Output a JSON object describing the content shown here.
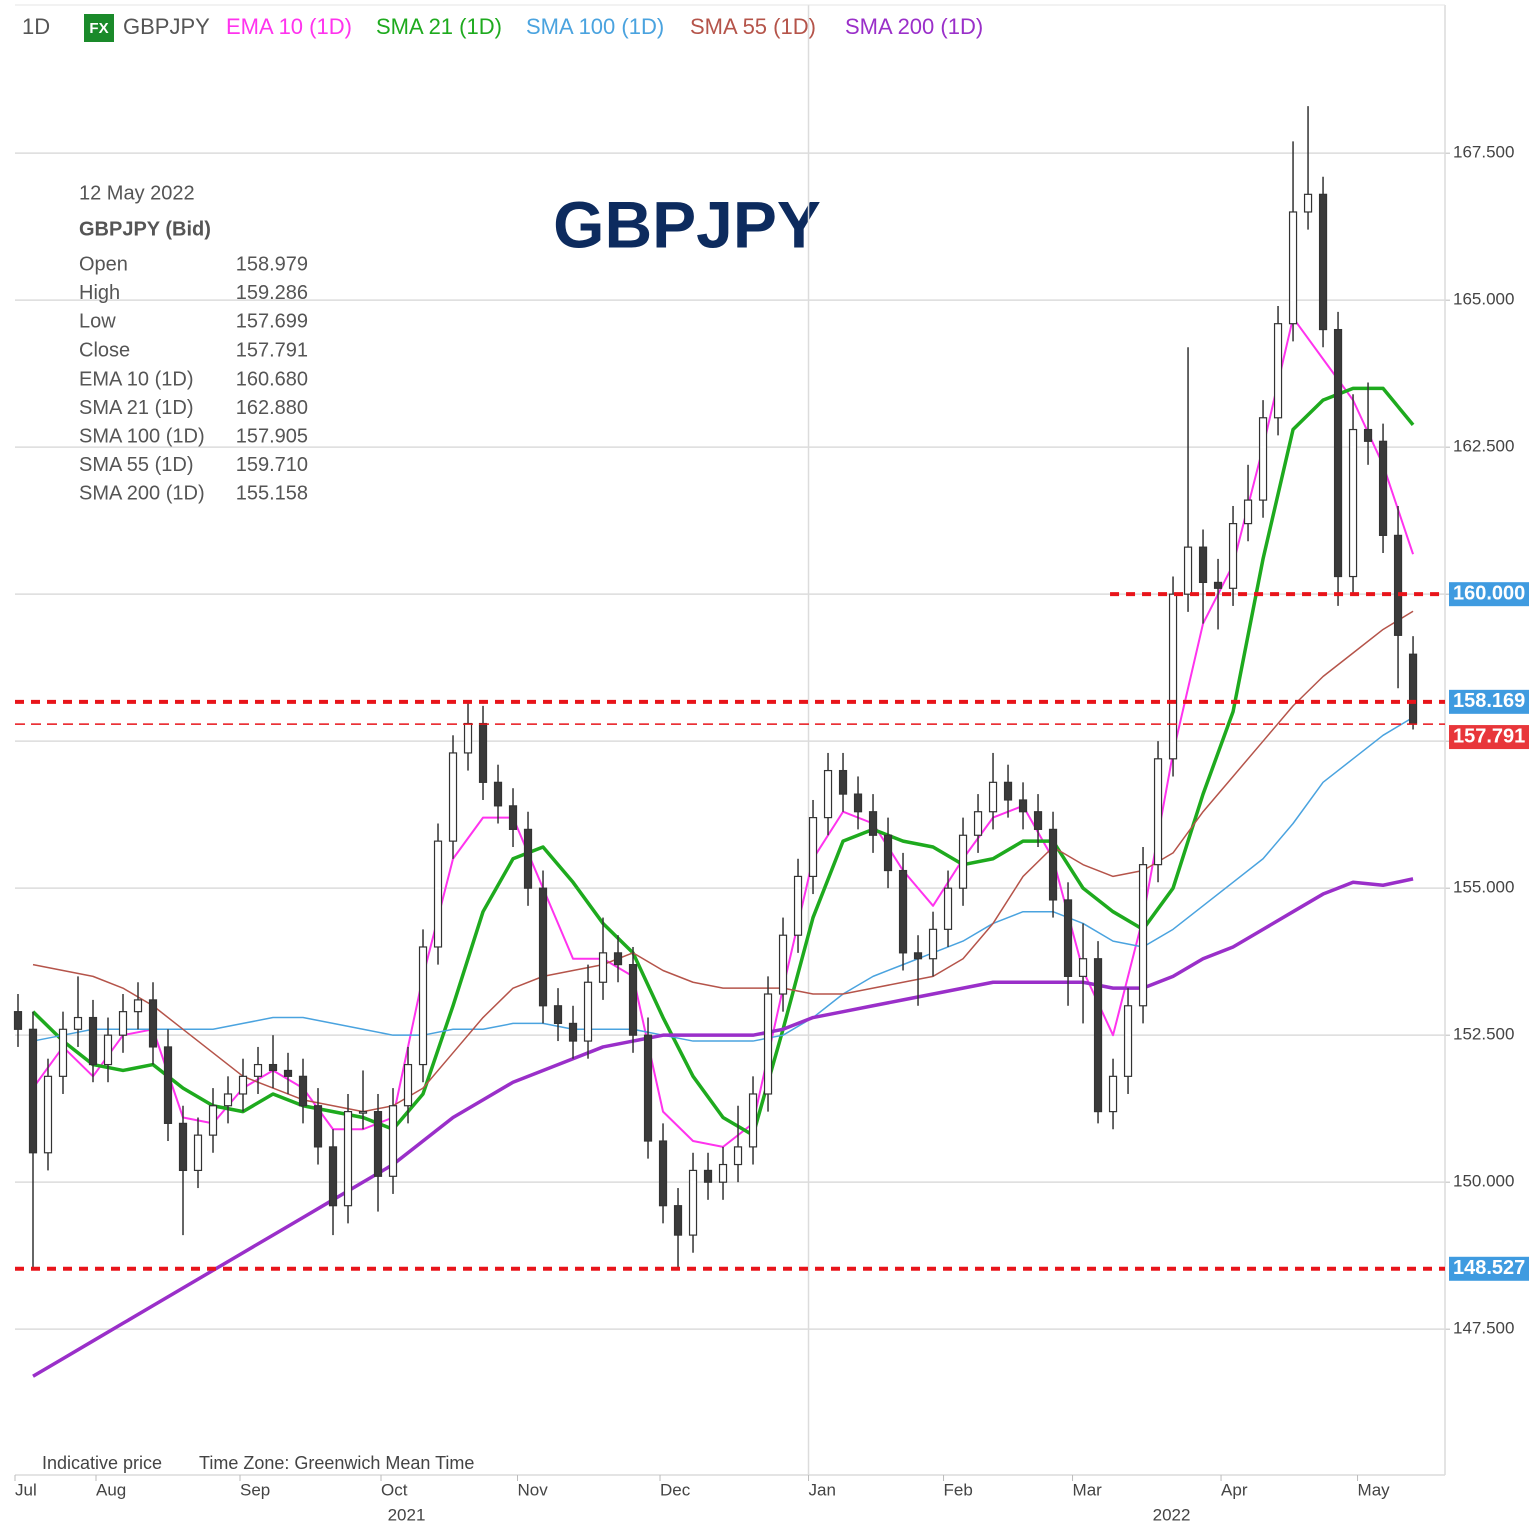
{
  "chart_data": {
    "type": "candlestick",
    "timeframe": "1D",
    "badge": "FX",
    "symbol": "GBPJPY",
    "title": "GBPJPY",
    "open": [
      152.9,
      152.6,
      150.5,
      151.8,
      152.6,
      152.8,
      152,
      152.5,
      152.9,
      153.1,
      152.3,
      151,
      150.2,
      150.8,
      151.3,
      151.5,
      151.8,
      152,
      151.9,
      151.8,
      151.3,
      150.6,
      149.6,
      151.2,
      151.2,
      150.1,
      151.3,
      152,
      154,
      155.8,
      157.3,
      157.8,
      156.8,
      156.4,
      156,
      155,
      153,
      152.7,
      152.4,
      153.4,
      153.9,
      153.7,
      152.5,
      150.7,
      149.6,
      149.1,
      150.2,
      150,
      150.3,
      150.6,
      151.5,
      153.2,
      154.2,
      155.2,
      156.2,
      157,
      156.6,
      156.3,
      155.9,
      155.3,
      153.9,
      153.8,
      154.3,
      155,
      155.9,
      156.3,
      156.8,
      156.5,
      156.3,
      156,
      154.8,
      153.5,
      153.8,
      151.2,
      151.8,
      153,
      155.4,
      157.2,
      160,
      160.8,
      160.2,
      160.1,
      161.2,
      161.6,
      163,
      164.6,
      166.5,
      166.8,
      164.5,
      160.3,
      162.8,
      162.6,
      161,
      158.979
    ],
    "high": [
      153.2,
      152.9,
      152.1,
      152.9,
      153.5,
      153.1,
      152.8,
      153.2,
      153.4,
      153.4,
      152.6,
      151.3,
      151.1,
      151.6,
      151.8,
      152.1,
      152.3,
      152.5,
      152.2,
      152.1,
      151.6,
      150.9,
      151.5,
      151.9,
      151.5,
      151.6,
      152.3,
      154.3,
      156.1,
      157.6,
      158.2,
      158.1,
      157.1,
      156.7,
      156.3,
      155.3,
      153.3,
      153,
      153.7,
      154.5,
      154.2,
      154,
      152.8,
      151,
      149.9,
      150.5,
      150.5,
      150.6,
      151.3,
      151.8,
      153.5,
      154.5,
      155.5,
      156.5,
      157.3,
      157.3,
      156.9,
      156.6,
      156.2,
      155.6,
      154.2,
      154.6,
      155.3,
      156.2,
      156.6,
      157.3,
      157.1,
      156.8,
      156.6,
      156.3,
      155.1,
      154.4,
      154.1,
      152.1,
      153.3,
      155.7,
      157.5,
      160.3,
      164.2,
      161.1,
      160.6,
      161.5,
      162.2,
      163.3,
      164.9,
      167.7,
      168.3,
      167.1,
      164.8,
      163.4,
      163.6,
      162.9,
      161.5,
      159.286
    ],
    "low": [
      152.3,
      148.5,
      150.2,
      151.5,
      152.3,
      151.7,
      151.7,
      152.2,
      152.6,
      152,
      150.7,
      149.1,
      149.9,
      150.5,
      151,
      151.2,
      151.5,
      151.6,
      151.5,
      151,
      150.3,
      149.1,
      149.3,
      150.9,
      149.5,
      149.8,
      151,
      151.7,
      153.7,
      155.5,
      157,
      156.5,
      156.1,
      155.7,
      154.7,
      152.7,
      152.4,
      152.1,
      152.1,
      153.1,
      153.4,
      152.2,
      150.4,
      149.3,
      148.5,
      148.8,
      149.7,
      149.7,
      150,
      150.3,
      151.2,
      152.9,
      153.9,
      154.9,
      155.9,
      156.3,
      156,
      155.6,
      155,
      153.6,
      153,
      153.5,
      154,
      154.7,
      155.6,
      156,
      156.2,
      156,
      155.7,
      154.5,
      153,
      152.7,
      151,
      150.9,
      151.5,
      152.7,
      155.1,
      156.9,
      159.7,
      159.5,
      159.4,
      159.8,
      160.9,
      161.3,
      162.7,
      164.3,
      166.2,
      164.2,
      159.8,
      160,
      162.2,
      160.7,
      158.4,
      157.699
    ],
    "close": [
      152.6,
      150.5,
      151.8,
      152.6,
      152.8,
      152,
      152.5,
      152.9,
      153.1,
      152.3,
      151,
      150.2,
      150.8,
      151.3,
      151.5,
      151.8,
      152,
      151.9,
      151.8,
      151.3,
      150.6,
      149.6,
      151.2,
      151.2,
      150.1,
      151.3,
      152,
      154,
      155.8,
      157.3,
      157.8,
      156.8,
      156.4,
      156,
      155,
      153,
      152.7,
      152.4,
      153.4,
      153.9,
      153.7,
      152.5,
      150.7,
      149.6,
      149.1,
      150.2,
      150,
      150.3,
      150.6,
      151.5,
      153.2,
      154.2,
      155.2,
      156.2,
      157,
      156.6,
      156.3,
      155.9,
      155.3,
      153.9,
      153.8,
      154.3,
      155,
      155.9,
      156.3,
      156.8,
      156.5,
      156.3,
      156,
      154.8,
      153.5,
      153.8,
      151.2,
      151.8,
      153,
      155.4,
      157.2,
      160,
      160.8,
      160.2,
      160.1,
      161.2,
      161.6,
      163,
      164.6,
      166.5,
      166.8,
      164.5,
      160.3,
      162.8,
      162.6,
      161,
      159.3,
      157.791
    ],
    "ma_x": [
      1,
      3,
      5,
      7,
      9,
      11,
      13,
      15,
      17,
      19,
      21,
      23,
      25,
      27,
      29,
      31,
      33,
      35,
      37,
      39,
      41,
      43,
      45,
      47,
      49,
      51,
      53,
      55,
      57,
      59,
      61,
      63,
      65,
      67,
      69,
      71,
      73,
      75,
      77,
      79,
      81,
      83,
      85,
      87,
      89,
      91,
      93
    ],
    "series": [
      {
        "name": "EMA 10 (1D)",
        "color": "#ff33ee",
        "width": 2,
        "values": [
          151.6,
          152.3,
          151.8,
          152.5,
          152.6,
          151.1,
          151,
          151.6,
          151.9,
          151.6,
          150.9,
          150.9,
          151.1,
          153.5,
          155.5,
          156.2,
          156.2,
          155,
          153.8,
          153.8,
          153.5,
          151.2,
          150.7,
          150.6,
          151,
          153.3,
          155.5,
          156.3,
          156.1,
          155.3,
          154.7,
          155.5,
          156.2,
          156.4,
          155.5,
          153.6,
          152.5,
          154.5,
          157.3,
          159.5,
          160.5,
          162.5,
          164.7,
          164,
          163.3,
          162.2,
          160.68
        ]
      },
      {
        "name": "SMA 21 (1D)",
        "color": "#1eaa1e",
        "width": 3.5,
        "values": [
          152.9,
          152.4,
          152,
          151.9,
          152,
          151.6,
          151.3,
          151.2,
          151.5,
          151.3,
          151.2,
          151.1,
          150.9,
          151.5,
          153,
          154.6,
          155.5,
          155.7,
          155.1,
          154.4,
          153.9,
          152.8,
          151.8,
          151.1,
          150.8,
          152.6,
          154.5,
          155.8,
          156,
          155.8,
          155.7,
          155.4,
          155.5,
          155.8,
          155.8,
          155,
          154.6,
          154.3,
          155,
          156.6,
          158,
          160.6,
          162.8,
          163.3,
          163.5,
          163.5,
          162.88
        ]
      },
      {
        "name": "SMA 100 (1D)",
        "color": "#4aa3df",
        "width": 1.5,
        "values": [
          152.4,
          152.5,
          152.6,
          152.6,
          152.6,
          152.6,
          152.6,
          152.7,
          152.8,
          152.8,
          152.7,
          152.6,
          152.5,
          152.5,
          152.6,
          152.6,
          152.7,
          152.7,
          152.6,
          152.6,
          152.6,
          152.5,
          152.4,
          152.4,
          152.4,
          152.5,
          152.8,
          153.2,
          153.5,
          153.7,
          153.9,
          154.1,
          154.4,
          154.6,
          154.6,
          154.4,
          154.1,
          154,
          154.3,
          154.7,
          155.1,
          155.5,
          156.1,
          156.8,
          157.2,
          157.6,
          157.905
        ]
      },
      {
        "name": "SMA 55 (1D)",
        "color": "#b5544a",
        "width": 1.5,
        "values": [
          153.7,
          153.6,
          153.5,
          153.3,
          153,
          152.6,
          152.2,
          151.8,
          151.6,
          151.4,
          151.3,
          151.2,
          151.3,
          151.6,
          152.2,
          152.8,
          153.3,
          153.5,
          153.6,
          153.7,
          153.9,
          153.6,
          153.4,
          153.3,
          153.3,
          153.3,
          153.2,
          153.2,
          153.3,
          153.4,
          153.5,
          153.8,
          154.4,
          155.2,
          155.7,
          155.4,
          155.2,
          155.3,
          155.6,
          156.3,
          156.9,
          157.5,
          158.1,
          158.6,
          159,
          159.4,
          159.71
        ]
      },
      {
        "name": "SMA 200 (1D)",
        "color": "#9a2fc9",
        "width": 3.5,
        "values": [
          146.7,
          147,
          147.3,
          147.6,
          147.9,
          148.2,
          148.5,
          148.8,
          149.1,
          149.4,
          149.7,
          150,
          150.3,
          150.7,
          151.1,
          151.4,
          151.7,
          151.9,
          152.1,
          152.3,
          152.4,
          152.5,
          152.5,
          152.5,
          152.5,
          152.6,
          152.8,
          152.9,
          153,
          153.1,
          153.2,
          153.3,
          153.4,
          153.4,
          153.4,
          153.4,
          153.3,
          153.3,
          153.5,
          153.8,
          154,
          154.3,
          154.6,
          154.9,
          155.1,
          155.05,
          155.158
        ]
      }
    ],
    "levels": [
      {
        "value": 160,
        "label": "160.000",
        "from": 72.8,
        "color": "#e8141a",
        "box": "#3f9be0"
      },
      {
        "value": 158.169,
        "label": "158.169",
        "from": -0.2,
        "color": "#e8141a",
        "box": "#3f9be0"
      },
      {
        "value": 157.791,
        "label": "157.791",
        "from": -0.2,
        "color": "#e8141a",
        "box": "#e8363a",
        "thin": true
      },
      {
        "value": 148.527,
        "label": "148.527",
        "from": -0.2,
        "color": "#e8141a",
        "box": "#3f9be0"
      }
    ],
    "ylim": [
      145.02,
      170.02
    ],
    "yticks": [
      {
        "value": 147.5,
        "label": "147.500"
      },
      {
        "value": 150,
        "label": "150.000"
      },
      {
        "value": 152.5,
        "label": "152.500"
      },
      {
        "value": 155,
        "label": "155.000"
      },
      {
        "value": 157.5,
        "label": "157.500"
      },
      {
        "value": 160,
        "label": "160.000"
      },
      {
        "value": 162.5,
        "label": "162.500"
      },
      {
        "value": 165,
        "label": "165.000"
      },
      {
        "value": 167.5,
        "label": "167.500"
      }
    ],
    "xlim": [
      -0.2,
      95.13
    ],
    "xticks": [
      {
        "value": -0.2,
        "label": "Jul"
      },
      {
        "value": 5.2,
        "label": "Aug"
      },
      {
        "value": 14.8,
        "label": "Sep"
      },
      {
        "value": 24.2,
        "label": "Oct"
      },
      {
        "value": 33.3,
        "label": "Nov"
      },
      {
        "value": 42.8,
        "label": "Dec"
      },
      {
        "value": 52.7,
        "label": "Jan"
      },
      {
        "value": 61.7,
        "label": "Feb"
      },
      {
        "value": 70.3,
        "label": "Mar"
      },
      {
        "value": 80.2,
        "label": "Apr"
      },
      {
        "value": 89.3,
        "label": "May"
      }
    ],
    "year_ticks": [
      {
        "value": 25.9,
        "label": "2021"
      },
      {
        "value": 76.9,
        "label": "2022"
      }
    ],
    "year_divider": 52.7,
    "grid": true
  },
  "info": {
    "date": "12 May 2022",
    "instrument": "GBPJPY (Bid)",
    "rows": [
      {
        "label": "Open",
        "value": "158.979"
      },
      {
        "label": "High",
        "value": "159.286"
      },
      {
        "label": "Low",
        "value": "157.699"
      },
      {
        "label": "Close",
        "value": "157.791"
      }
    ],
    "ma_values": [
      "160.680",
      "162.880",
      "157.905",
      "159.710",
      "155.158"
    ]
  },
  "footer": {
    "note": "Indicative price",
    "timezone": "Time Zone: Greenwich Mean Time"
  }
}
